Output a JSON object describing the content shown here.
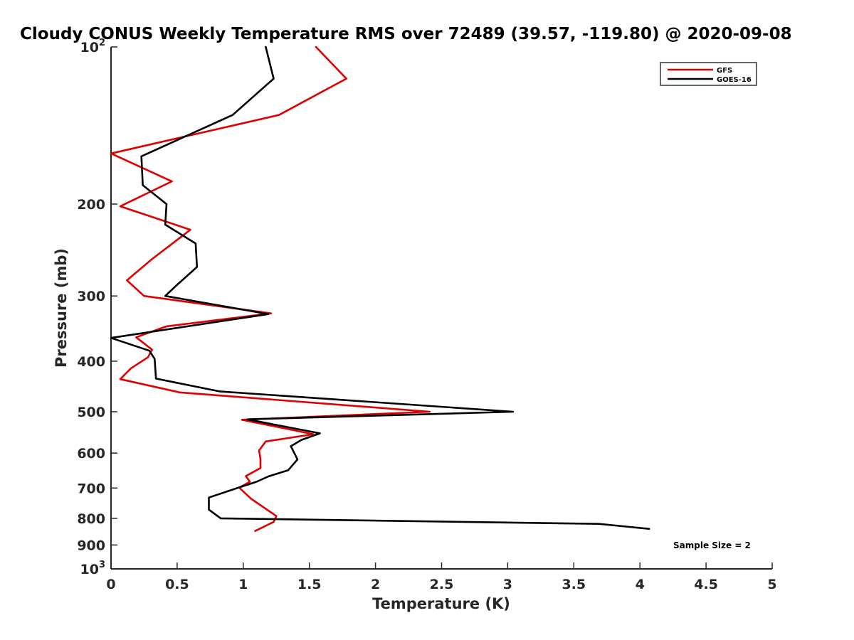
{
  "chart_data": {
    "type": "line",
    "title": "Cloudy CONUS Weekly Temperature RMS over 72489 (39.57, -119.80) @ 2020-09-08",
    "xlabel": "Temperature (K)",
    "ylabel": "Pressure (mb)",
    "xlim": [
      0,
      5
    ],
    "ylim": [
      100,
      1000
    ],
    "y_scale": "log",
    "y_reversed": true,
    "x_ticks": [
      "0",
      "0.5",
      "1",
      "1.5",
      "2",
      "2.5",
      "3",
      "3.5",
      "4",
      "4.5",
      "5"
    ],
    "y_ticks": [
      {
        "value": 100,
        "base": "10",
        "exp": "2"
      },
      {
        "value": 200,
        "label": "200"
      },
      {
        "value": 300,
        "label": "300"
      },
      {
        "value": 400,
        "label": "400"
      },
      {
        "value": 500,
        "label": "500"
      },
      {
        "value": 600,
        "label": "600"
      },
      {
        "value": 700,
        "label": "700"
      },
      {
        "value": 800,
        "label": "800"
      },
      {
        "value": 900,
        "label": "900"
      },
      {
        "value": 1000,
        "base": "10",
        "exp": "3"
      }
    ],
    "grid": false,
    "legend_position": "top-right",
    "annotation": "Sample Size = 2",
    "series": [
      {
        "name": "GFS",
        "color": "#e00000",
        "x": [
          1.55,
          1.78,
          1.27,
          0.0,
          0.46,
          0.07,
          0.6,
          0.31,
          0.12,
          0.25,
          1.21,
          0.42,
          0.19,
          0.31,
          0.28,
          0.15,
          0.07,
          0.52,
          2.41,
          0.99,
          1.53,
          1.17,
          1.12,
          1.13,
          1.13,
          1.02,
          1.05,
          0.97,
          1.06,
          1.25,
          1.23,
          1.09
        ],
        "y": [
          100,
          115,
          135,
          160,
          181,
          202,
          224,
          255,
          280,
          300,
          324,
          343,
          360,
          380,
          393,
          413,
          433,
          459,
          500,
          518,
          552,
          570,
          593,
          617,
          641,
          664,
          681,
          699,
          734,
          792,
          813,
          846
        ]
      },
      {
        "name": "GOES-16",
        "color": "#000000",
        "x": [
          1.17,
          1.23,
          0.92,
          0.23,
          0.24,
          0.42,
          0.41,
          0.64,
          0.65,
          0.51,
          0.41,
          1.19,
          0.0,
          0.29,
          0.33,
          0.34,
          0.82,
          3.04,
          1.03,
          1.58,
          1.44,
          1.36,
          1.41,
          1.34,
          1.19,
          1.1,
          0.97,
          0.74,
          0.74,
          0.83,
          3.69,
          4.07
        ],
        "y": [
          100,
          115,
          135,
          162,
          184,
          200,
          219,
          238,
          264,
          284,
          300,
          325,
          361,
          382,
          396,
          432,
          457,
          500,
          517,
          550,
          566,
          582,
          617,
          647,
          665,
          681,
          698,
          730,
          770,
          800,
          820,
          838
        ]
      }
    ]
  }
}
